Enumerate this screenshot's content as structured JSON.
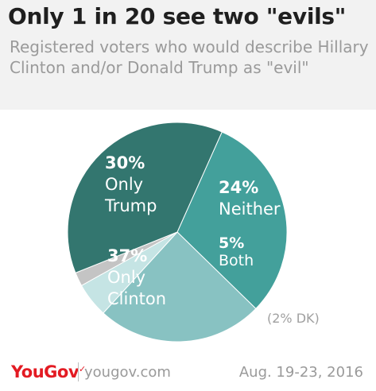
{
  "header": {
    "title": "Only 1 in 20 see two \"evils\"",
    "subtitle": "Registered voters who would describe Hillary Clinton and/or Donald Trump as \"evil\""
  },
  "footer": {
    "brand": "YouGov",
    "site": "yougov.com",
    "date": "Aug. 19-23, 2016"
  },
  "chart_data": {
    "type": "pie",
    "slices": [
      {
        "key": "trump",
        "pct_label": "30%",
        "name": "Only Trump",
        "line1": "Only",
        "line2": "Trump",
        "value": 30,
        "color": "#43a09b",
        "label_color": "#ffffff"
      },
      {
        "key": "neither",
        "pct_label": "24%",
        "name": "Neither",
        "line1": "Neither",
        "line2": "",
        "value": 24,
        "color": "#88c2c2",
        "label_color": "#ffffff"
      },
      {
        "key": "both",
        "pct_label": "5%",
        "name": "Both",
        "line1": "Both",
        "line2": "",
        "value": 5,
        "color": "#c5e4e4",
        "label_color": "#ffffff"
      },
      {
        "key": "dk",
        "pct_label": "",
        "name": "(2% DK)",
        "line1": "(2% DK)",
        "line2": "",
        "value": 2,
        "color": "#c4c4c4",
        "label_color": "#a0a0a0"
      },
      {
        "key": "clinton",
        "pct_label": "37%",
        "name": "Only Clinton",
        "line1": "Only",
        "line2": "Clinton",
        "value": 37,
        "color": "#33766f",
        "label_color": "#ffffff"
      }
    ]
  }
}
